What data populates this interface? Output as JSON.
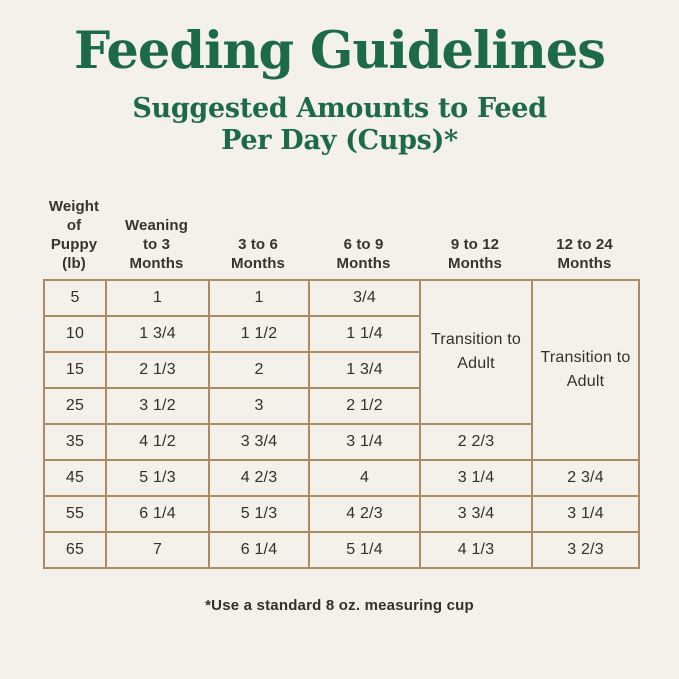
{
  "chart_data": {
    "type": "table",
    "title": "Feeding Guidelines",
    "subtitle": "Suggested Amounts to Feed Per Day (Cups)*",
    "columns": [
      "Weight of Puppy (lb)",
      "Weaning to 3 Months",
      "3 to 6 Months",
      "6 to 9 Months",
      "9 to 12 Months",
      "12 to 24 Months"
    ],
    "rows": [
      [
        "5",
        "1",
        "1",
        "3/4",
        "Transition to Adult",
        "Transition to Adult"
      ],
      [
        "10",
        "1 3/4",
        "1 1/2",
        "1 1/4"
      ],
      [
        "15",
        "2 1/3",
        "2",
        "1 3/4"
      ],
      [
        "25",
        "3 1/2",
        "3",
        "2 1/2"
      ],
      [
        "35",
        "4 1/2",
        "3 3/4",
        "3 1/4",
        "2 2/3"
      ],
      [
        "45",
        "5 1/3",
        "4 2/3",
        "4",
        "3 1/4",
        "2 3/4"
      ],
      [
        "55",
        "6 1/4",
        "5 1/3",
        "4 2/3",
        "3 3/4",
        "3 1/4"
      ],
      [
        "65",
        "7",
        "6 1/4",
        "5 1/4",
        "4 1/3",
        "3 2/3"
      ]
    ],
    "merged_cells": [
      {
        "column": "9 to 12 Months",
        "spans_weight_rows": [
          "5",
          "10",
          "15",
          "25"
        ],
        "value": "Transition to Adult"
      },
      {
        "column": "12 to 24 Months",
        "spans_weight_rows": [
          "5",
          "10",
          "15",
          "25",
          "35"
        ],
        "value": "Transition to Adult"
      }
    ],
    "footnote": "*Use a standard 8 oz. measuring cup",
    "layout_hints": {
      "grid": "full borders on body cells",
      "header_borders": "none"
    }
  },
  "subtitle_lines": [
    "Suggested Amounts to Feed",
    "Per Day (Cups)*"
  ],
  "header_display": [
    [
      "Weight",
      "of Puppy",
      "(lb)"
    ],
    [
      "Weaning",
      "to 3",
      "Months"
    ],
    [
      "3 to 6",
      "Months"
    ],
    [
      "6 to 9",
      "Months"
    ],
    [
      "9 to 12",
      "Months"
    ],
    [
      "12 to 24",
      "Months"
    ]
  ],
  "colors": {
    "background": "#f4f1ea",
    "heading_green": "#1c6a46",
    "table_border": "#ae8a62",
    "body_text": "#352f29"
  }
}
